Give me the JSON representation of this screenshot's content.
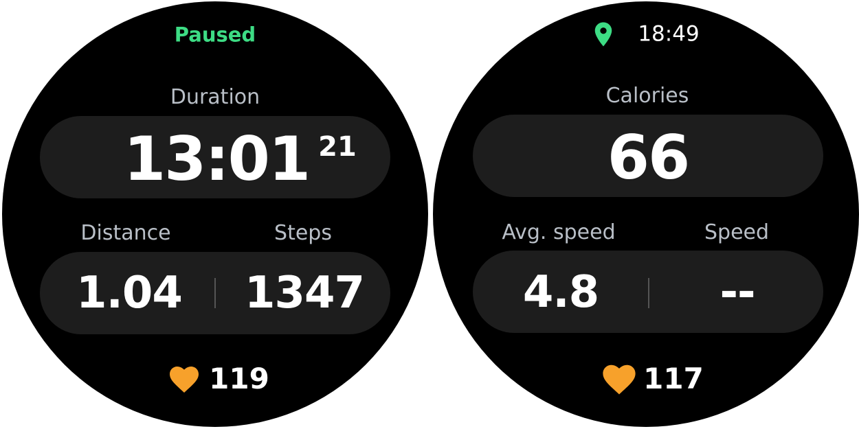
{
  "screens": [
    {
      "status": "Paused",
      "main": {
        "label": "Duration",
        "value": "13:01",
        "sub_value": "21"
      },
      "stats": [
        {
          "label": "Distance",
          "value": "1.04"
        },
        {
          "label": "Steps",
          "value": "1347"
        }
      ],
      "heart_rate": "119"
    },
    {
      "status": "18:49",
      "main": {
        "label": "Calories",
        "value": "66"
      },
      "stats": [
        {
          "label": "Avg. speed",
          "value": "4.8"
        },
        {
          "label": "Speed",
          "value": "--"
        }
      ],
      "heart_rate": "117"
    }
  ]
}
